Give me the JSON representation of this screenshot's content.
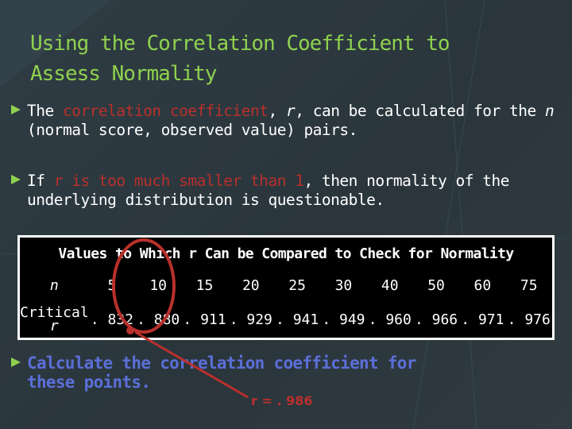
{
  "slide": {
    "title_line1": "Using the Correlation Coefficient to",
    "title_line2": "Assess Normality",
    "para1": {
      "pre": "The ",
      "highlight": "correlation coefficient",
      "mid1": ", ",
      "r": "r",
      "mid2": ", can be calculated for the ",
      "n": "n",
      "post": " (normal score, observed value) pairs."
    },
    "para2": {
      "pre": "If ",
      "highlight": "r is too much smaller than 1",
      "post": ", then normality of the underlying distribution is questionable."
    },
    "table": {
      "header": "Values to Which r Can be Compared to Check for Normality",
      "row_n_label": "n",
      "n_values": [
        "5",
        "10",
        "15",
        "20",
        "25",
        "30",
        "40",
        "50",
        "60",
        "75"
      ],
      "row_r_label_line1": "Critical",
      "row_r_label_line2": "r",
      "r_values": [
        ". 832",
        ". 880",
        ". 911",
        ". 929",
        ". 941",
        ". 949",
        ". 960",
        ". 966",
        ". 971",
        ". 976"
      ]
    },
    "calc_line1": "Calculate the correlation coefficient for",
    "calc_line2": "these points.",
    "r_result": "r = . 986",
    "colors": {
      "title": "#8fd14f",
      "highlight": "#b9302c",
      "calc_text": "#5b6fd8",
      "circle": "#b9302c",
      "background": "#2b3a40"
    }
  }
}
